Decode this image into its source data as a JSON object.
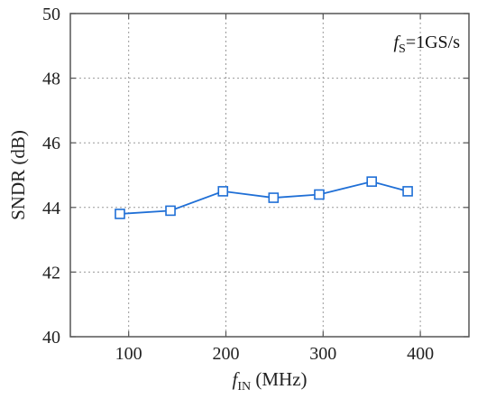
{
  "chart_data": {
    "type": "line",
    "x": [
      91,
      143,
      197,
      249,
      296,
      350,
      387
    ],
    "series": [
      {
        "values": [
          43.8,
          43.9,
          44.5,
          44.3,
          44.4,
          44.8,
          44.5
        ],
        "marker": "square",
        "color": "#1f6fd6"
      }
    ],
    "xlabel": {
      "main": "f",
      "sub": "IN",
      "rest": " (MHz)"
    },
    "ylabel": "SNDR (dB)",
    "xlim": [
      40,
      450
    ],
    "ylim": [
      40,
      50
    ],
    "xticks": [
      100,
      200,
      300,
      400
    ],
    "yticks": [
      40,
      42,
      44,
      46,
      48,
      50
    ],
    "grid": true,
    "annotation": {
      "main": "f",
      "sub": "S",
      "rest": "=1GS/s",
      "placement": "top-right"
    }
  }
}
